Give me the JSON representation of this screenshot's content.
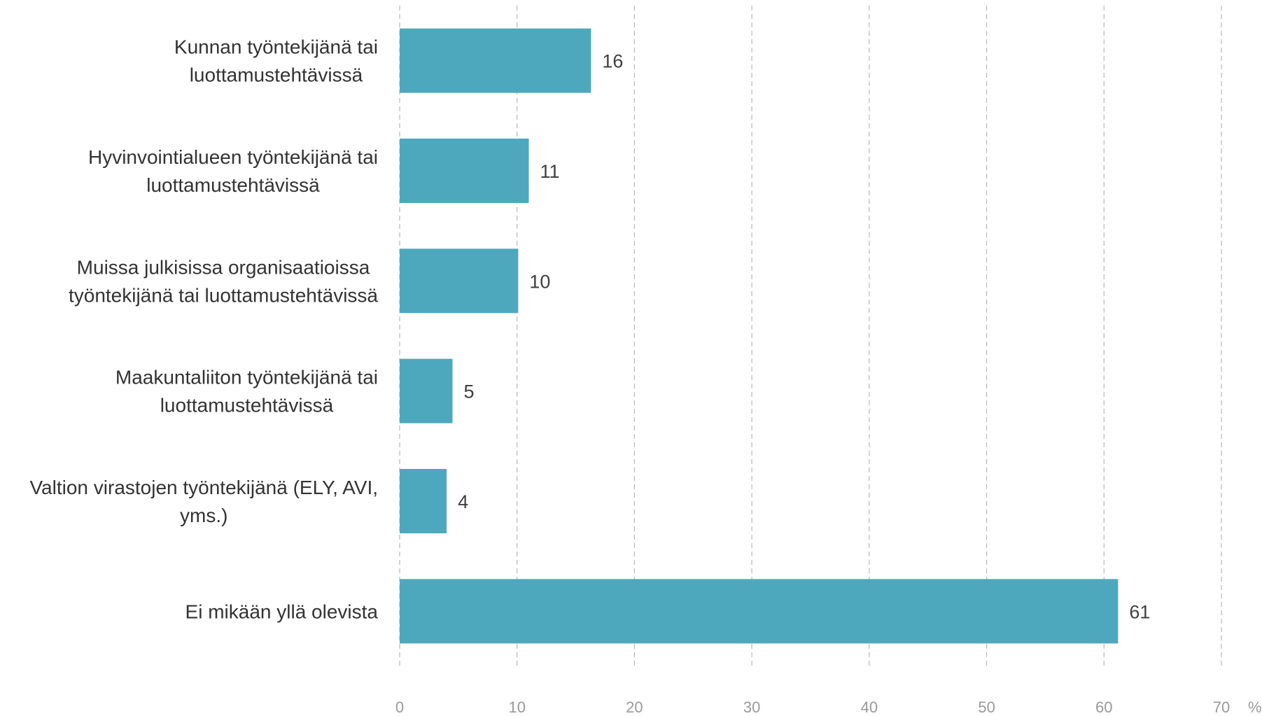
{
  "chart_data": {
    "type": "bar",
    "orientation": "horizontal",
    "categories": [
      [
        "Kunnan työntekijänä tai",
        "luottamustehtävissä"
      ],
      [
        "Hyvinvointialueen työntekijänä tai",
        "luottamustehtävissä"
      ],
      [
        "Muissa julkisissa organisaatioissa",
        "työntekijänä tai luottamustehtävissä"
      ],
      [
        "Maakuntaliiton työntekijänä tai",
        "luottamustehtävissä"
      ],
      [
        "Valtion virastojen työntekijänä (ELY, AVI,",
        "yms.)"
      ],
      [
        "Ei mikään yllä olevista"
      ]
    ],
    "values": [
      16.3,
      11,
      10.1,
      4.5,
      4,
      61.2
    ],
    "value_labels": [
      "16",
      "11",
      "10",
      "5",
      "4",
      "61"
    ],
    "xlim": [
      0,
      70
    ],
    "x_ticks": [
      0,
      10,
      20,
      30,
      40,
      50,
      60,
      70
    ],
    "x_tick_labels": [
      "0",
      "10",
      "20",
      "30",
      "40",
      "50",
      "60",
      "70"
    ],
    "x_unit": "%",
    "grid": "vertical-dashed",
    "bar_color": "#4ea8bd",
    "title": "",
    "xlabel": "",
    "ylabel": ""
  }
}
